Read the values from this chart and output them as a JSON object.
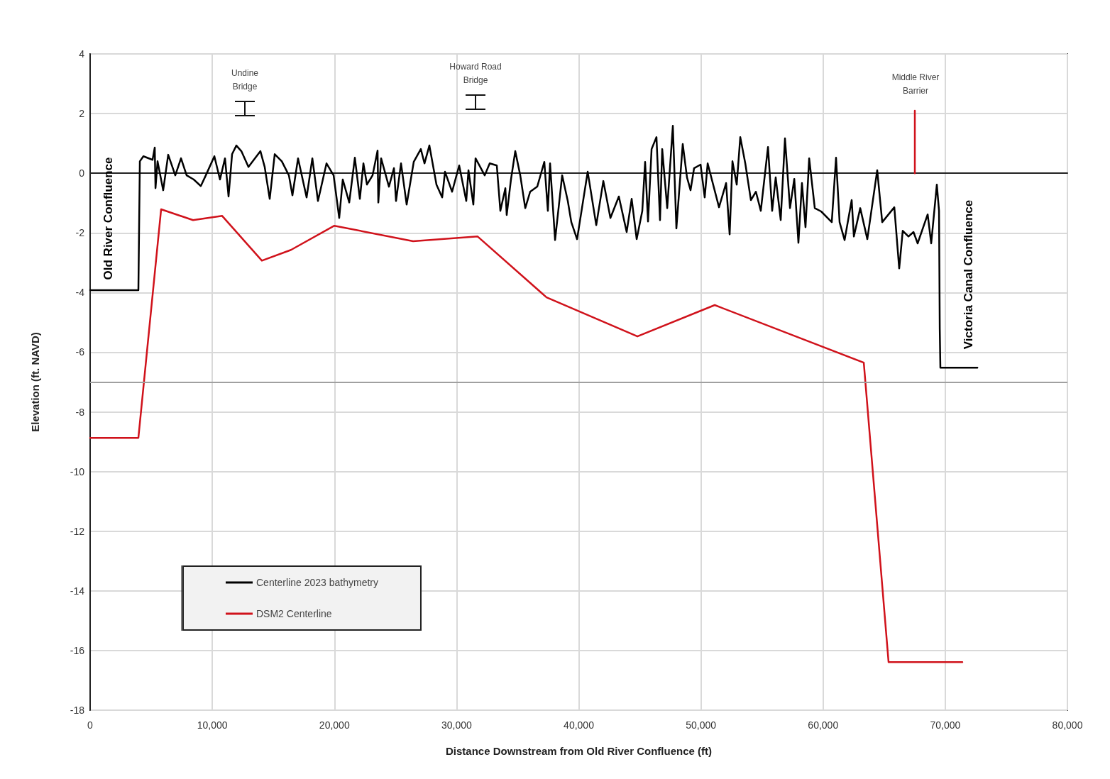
{
  "chart_data": {
    "type": "line",
    "xlabel": "Distance Downstream from Old River Confluence (ft)",
    "ylabel": "Elevation (ft. NAVD)",
    "xlim": [
      0,
      80000
    ],
    "xticks": [
      0,
      {
        "value": 10000,
        "label": "10,000"
      },
      {
        "value": 20000,
        "label": "20,000"
      },
      {
        "value": 30000,
        "label": "30,000"
      },
      {
        "value": 40000,
        "label": "40,000"
      },
      {
        "value": 50000,
        "label": "50,000"
      },
      {
        "value": 60000,
        "label": "60,000"
      },
      {
        "value": 70000,
        "label": "70,000"
      },
      {
        "value": 80000,
        "label": "80,000"
      }
    ],
    "ylim": [
      -18,
      4
    ],
    "yticks": [
      -18,
      -16,
      -14,
      -12,
      -10,
      -8,
      -6,
      -4,
      -2,
      0,
      2,
      4
    ],
    "grid": true,
    "legend": "bottom left",
    "marker": "none",
    "line_style": "solid",
    "series": [
      {
        "name": "Centerline 2023 bathymetry",
        "color": "#000000",
        "x": [
          0,
          3950,
          4070,
          4360,
          5110,
          5290,
          5350,
          5520,
          5980,
          6390,
          6970,
          7440,
          7900,
          8480,
          9060,
          9470,
          10170,
          10630,
          11040,
          11330,
          11620,
          11970,
          12380,
          12960,
          13940,
          14290,
          14700,
          15110,
          15690,
          16270,
          16560,
          17020,
          17720,
          18190,
          18650,
          19350,
          19930,
          20390,
          20680,
          21210,
          21670,
          22080,
          22370,
          22660,
          23120,
          23530,
          23590,
          23820,
          24460,
          24870,
          25040,
          25450,
          25910,
          26490,
          27070,
          27370,
          27770,
          28350,
          28820,
          29050,
          29630,
          30210,
          30790,
          30970,
          31370,
          31550,
          32300,
          32710,
          33290,
          33580,
          33990,
          34100,
          34450,
          34800,
          35210,
          35620,
          36020,
          36600,
          37180,
          37470,
          37650,
          38060,
          38640,
          39100,
          39390,
          39860,
          40730,
          41430,
          42010,
          42590,
          43280,
          43920,
          44330,
          44740,
          45200,
          45430,
          45670,
          45960,
          46360,
          46650,
          46830,
          47240,
          47700,
          47990,
          48510,
          48860,
          49150,
          49440,
          49970,
          50310,
          50550,
          51480,
          52060,
          52350,
          52580,
          52930,
          53220,
          53630,
          54090,
          54500,
          54900,
          55490,
          55830,
          56120,
          56530,
          56880,
          57290,
          57640,
          57980,
          58270,
          58560,
          58860,
          59320,
          59840,
          60710,
          61060,
          61350,
          61760,
          62340,
          62520,
          63040,
          63620,
          64430,
          64840,
          65830,
          66230,
          66520,
          66990,
          67400,
          67740,
          68560,
          68850,
          69310,
          69490,
          69550,
          69600,
          72630
        ],
        "values": [
          -3.92,
          -3.92,
          0.4,
          0.57,
          0.45,
          0.86,
          -0.5,
          0.4,
          -0.57,
          0.62,
          -0.07,
          0.5,
          -0.07,
          -0.21,
          -0.43,
          -0.07,
          0.57,
          -0.21,
          0.5,
          -0.78,
          0.64,
          0.93,
          0.74,
          0.21,
          0.74,
          0.21,
          -0.86,
          0.64,
          0.4,
          -0.07,
          -0.74,
          0.5,
          -0.81,
          0.5,
          -0.93,
          0.33,
          -0.07,
          -1.5,
          -0.21,
          -0.98,
          0.52,
          -0.86,
          0.33,
          -0.38,
          -0.07,
          0.76,
          -0.98,
          0.5,
          -0.45,
          0.17,
          -0.93,
          0.33,
          -1.05,
          0.38,
          0.81,
          0.33,
          0.93,
          -0.38,
          -0.81,
          0.05,
          -0.62,
          0.26,
          -0.93,
          0.1,
          -1.05,
          0.5,
          -0.07,
          0.33,
          0.26,
          -1.26,
          -0.5,
          -1.4,
          -0.21,
          0.74,
          -0.07,
          -1.17,
          -0.62,
          -0.45,
          0.38,
          -1.26,
          0.33,
          -2.24,
          -0.07,
          -0.93,
          -1.64,
          -2.21,
          0.05,
          -1.74,
          -0.26,
          -1.5,
          -0.78,
          -1.97,
          -0.86,
          -2.21,
          -1.26,
          0.38,
          -1.62,
          0.81,
          1.21,
          -1.57,
          0.81,
          -1.17,
          1.59,
          -1.85,
          0.98,
          -0.14,
          -0.57,
          0.17,
          0.29,
          -0.81,
          0.33,
          -1.14,
          -0.33,
          -2.05,
          0.4,
          -0.38,
          1.21,
          0.33,
          -0.9,
          -0.62,
          -1.26,
          0.88,
          -1.26,
          -0.14,
          -1.57,
          1.17,
          -1.17,
          -0.19,
          -2.33,
          -0.33,
          -1.81,
          0.5,
          -1.17,
          -1.28,
          -1.64,
          0.52,
          -1.64,
          -2.24,
          -0.9,
          -2.12,
          -1.17,
          -2.21,
          0.1,
          -1.64,
          -1.14,
          -3.19,
          -1.93,
          -2.12,
          -1.97,
          -2.35,
          -1.38,
          -2.35,
          -0.38,
          -1.26,
          -5.21,
          -6.52,
          -6.52
        ]
      },
      {
        "name": "DSM2 Centerline",
        "color": "#d0121b",
        "x": [
          0,
          3950,
          5810,
          8425,
          10810,
          14060,
          16440,
          19990,
          26440,
          31720,
          37360,
          44800,
          51130,
          63330,
          65360,
          71400
        ],
        "values": [
          -8.87,
          -8.87,
          -1.21,
          -1.57,
          -1.43,
          -2.93,
          -2.57,
          -1.76,
          -2.28,
          -2.12,
          -4.16,
          -5.47,
          -4.42,
          -6.35,
          -16.39,
          -16.39
        ]
      },
      {
        "color": "#d0121b",
        "x": [
          67510,
          67510
        ],
        "values": [
          2.1,
          0
        ]
      }
    ],
    "ref_lines": [
      {
        "axis": "y",
        "value": -7,
        "color": "#a0a0a0"
      }
    ],
    "annotations": [
      "Undine\nBridge",
      "Howard Road\nBridge",
      "Middle River\nBarrier",
      "Old River Confluence",
      "Victoria Canal Confluence"
    ]
  }
}
